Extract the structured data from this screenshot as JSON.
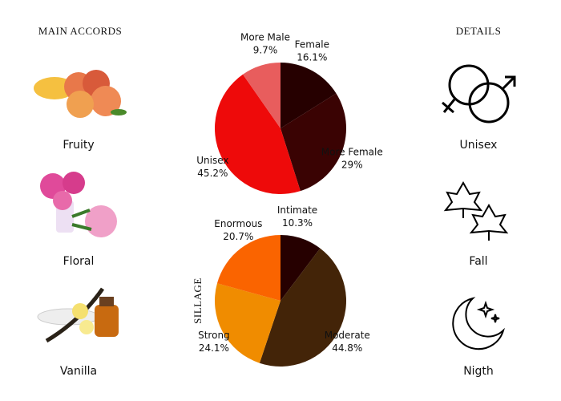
{
  "header": {
    "left": "MAIN ACCORDS",
    "right": "DETAILS"
  },
  "accords": [
    "Fruity",
    "Floral",
    "Vanilla"
  ],
  "details": [
    "Unisex",
    "Fall",
    "Nigth"
  ],
  "chart_data": [
    {
      "type": "pie",
      "categories": [
        "Female",
        "More Female",
        "Unisex",
        "More Male"
      ],
      "values": [
        16.1,
        29,
        45.2,
        9.7
      ],
      "value_labels": [
        "16.1%",
        "29%",
        "45.2%",
        "9.7%"
      ],
      "colors": [
        "#260000",
        "#3a0303",
        "#ee0a0a",
        "#e85d5d"
      ]
    },
    {
      "type": "pie",
      "ylabel": "SILLAGE",
      "categories": [
        "Intimate",
        "Moderate",
        "Strong",
        "Enormous"
      ],
      "values": [
        10.3,
        44.8,
        24.1,
        20.7
      ],
      "value_labels": [
        "10.3%",
        "44.8%",
        "24.1%",
        "20.7%"
      ],
      "colors": [
        "#260000",
        "#432408",
        "#f08c00",
        "#fa6400"
      ]
    }
  ]
}
